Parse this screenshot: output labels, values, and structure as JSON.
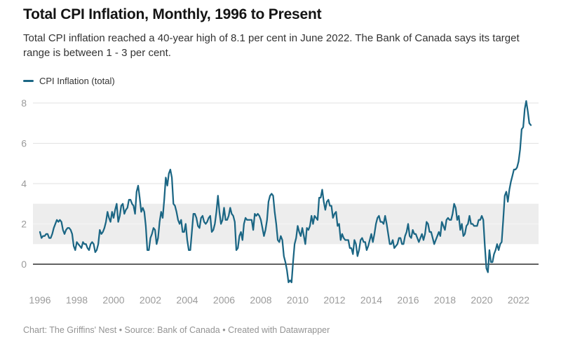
{
  "header": {
    "title": "Total CPI Inflation, Monthly, 1996 to Present",
    "subtitle": "Total CPI inflation reached a 40-year high of 8.1 per cent in June 2022. The Bank of Canada says its target range is between 1 - 3 per cent."
  },
  "legend": {
    "items": [
      {
        "label": "CPI Inflation (total)"
      }
    ]
  },
  "footer": {
    "text_before_source": "Chart: The Griffins' Nest • Source: ",
    "source_link": "Bank of Canada",
    "text_between": " • Created with ",
    "datawrapper_link": "Datawrapper"
  },
  "chart_data": {
    "type": "line",
    "title": "Total CPI Inflation, Monthly, 1996 to Present",
    "subtitle": "Total CPI inflation reached a 40-year high of 8.1 per cent in June 2022. The Bank of Canada says its target range is between 1 - 3 per cent.",
    "x_start": "1996-01",
    "x_end": "2022-09",
    "x_ticks": [
      1996,
      1998,
      2000,
      2002,
      2004,
      2006,
      2008,
      2010,
      2012,
      2014,
      2016,
      2018,
      2020,
      2022
    ],
    "y_ticks": [
      0,
      2,
      4,
      6,
      8
    ],
    "ylim": [
      -1.2,
      8.6
    ],
    "grid": true,
    "legend_position": "top-left",
    "target_band": {
      "from": 1,
      "to": 3,
      "color": "#ededed"
    },
    "series": [
      {
        "name": "CPI Inflation (total)",
        "color": "#1b6684",
        "start_year": 1996,
        "points_per_year": 12,
        "values": [
          1.6,
          1.3,
          1.4,
          1.4,
          1.5,
          1.5,
          1.3,
          1.3,
          1.5,
          1.8,
          2.0,
          2.2,
          2.1,
          2.2,
          2.1,
          1.7,
          1.5,
          1.7,
          1.8,
          1.8,
          1.7,
          1.5,
          0.9,
          0.7,
          1.1,
          1.0,
          0.9,
          0.8,
          1.1,
          1.0,
          1.0,
          0.8,
          0.7,
          1.0,
          1.1,
          1.0,
          0.6,
          0.7,
          1.0,
          1.7,
          1.5,
          1.6,
          1.8,
          2.1,
          2.6,
          2.3,
          2.1,
          2.6,
          2.3,
          2.7,
          3.0,
          2.1,
          2.4,
          2.9,
          3.0,
          2.5,
          2.7,
          2.8,
          3.2,
          3.2,
          3.0,
          2.9,
          2.5,
          3.6,
          3.9,
          3.3,
          2.6,
          2.8,
          2.6,
          1.9,
          0.7,
          0.7,
          1.3,
          1.5,
          1.8,
          1.7,
          1.0,
          1.3,
          2.1,
          2.6,
          2.3,
          3.2,
          4.3,
          3.9,
          4.5,
          4.7,
          4.3,
          3.0,
          2.9,
          2.6,
          2.2,
          2.0,
          2.2,
          1.6,
          1.6,
          2.0,
          1.2,
          0.7,
          0.7,
          1.6,
          2.5,
          2.5,
          2.3,
          1.9,
          1.8,
          2.3,
          2.4,
          2.1,
          2.0,
          2.1,
          2.3,
          2.4,
          1.6,
          1.7,
          2.0,
          2.6,
          3.4,
          2.6,
          2.0,
          2.2,
          2.8,
          2.2,
          2.2,
          2.4,
          2.8,
          2.5,
          2.4,
          2.1,
          0.7,
          0.8,
          1.4,
          1.6,
          1.2,
          2.0,
          2.3,
          2.2,
          2.2,
          2.2,
          2.2,
          1.7,
          2.5,
          2.4,
          2.5,
          2.4,
          2.2,
          1.8,
          1.4,
          1.7,
          2.2,
          3.1,
          3.4,
          3.5,
          3.4,
          2.6,
          2.0,
          1.2,
          1.1,
          1.4,
          1.2,
          0.4,
          0.1,
          -0.3,
          -0.9,
          -0.8,
          -0.9,
          0.1,
          1.0,
          1.3,
          1.9,
          1.6,
          1.4,
          1.8,
          1.4,
          1.0,
          1.8,
          1.7,
          1.9,
          2.4,
          2.0,
          2.4,
          2.3,
          2.2,
          3.3,
          3.3,
          3.7,
          3.1,
          2.7,
          3.1,
          3.2,
          2.9,
          2.9,
          2.3,
          2.5,
          2.6,
          1.9,
          2.0,
          1.2,
          1.5,
          1.3,
          1.2,
          1.2,
          1.2,
          0.8,
          0.8,
          0.5,
          1.2,
          1.0,
          0.4,
          0.7,
          1.2,
          1.3,
          1.1,
          1.1,
          0.7,
          0.9,
          1.2,
          1.5,
          1.1,
          1.5,
          2.0,
          2.3,
          2.4,
          2.1,
          2.1,
          2.0,
          2.4,
          2.0,
          1.5,
          1.0,
          1.0,
          1.2,
          0.8,
          0.9,
          1.0,
          1.3,
          1.3,
          1.0,
          1.0,
          1.4,
          1.6,
          2.0,
          1.4,
          1.3,
          1.7,
          1.5,
          1.5,
          1.3,
          1.1,
          1.3,
          1.5,
          1.2,
          1.5,
          2.1,
          2.0,
          1.6,
          1.6,
          1.3,
          1.0,
          1.2,
          1.4,
          1.6,
          1.4,
          2.1,
          1.9,
          1.7,
          2.2,
          2.3,
          2.2,
          2.2,
          2.5,
          3.0,
          2.8,
          2.2,
          2.4,
          1.7,
          2.0,
          1.4,
          1.5,
          1.9,
          2.0,
          2.4,
          2.0,
          2.0,
          1.9,
          1.9,
          1.9,
          2.2,
          2.2,
          2.4,
          2.2,
          0.9,
          -0.2,
          -0.4,
          0.7,
          0.1,
          0.1,
          0.5,
          0.7,
          1.0,
          0.7,
          1.0,
          1.1,
          2.2,
          3.4,
          3.6,
          3.1,
          3.7,
          4.1,
          4.4,
          4.7,
          4.7,
          4.8,
          5.1,
          5.7,
          6.7,
          6.8,
          7.7,
          8.1,
          7.6,
          7.0,
          6.9
        ]
      }
    ]
  }
}
